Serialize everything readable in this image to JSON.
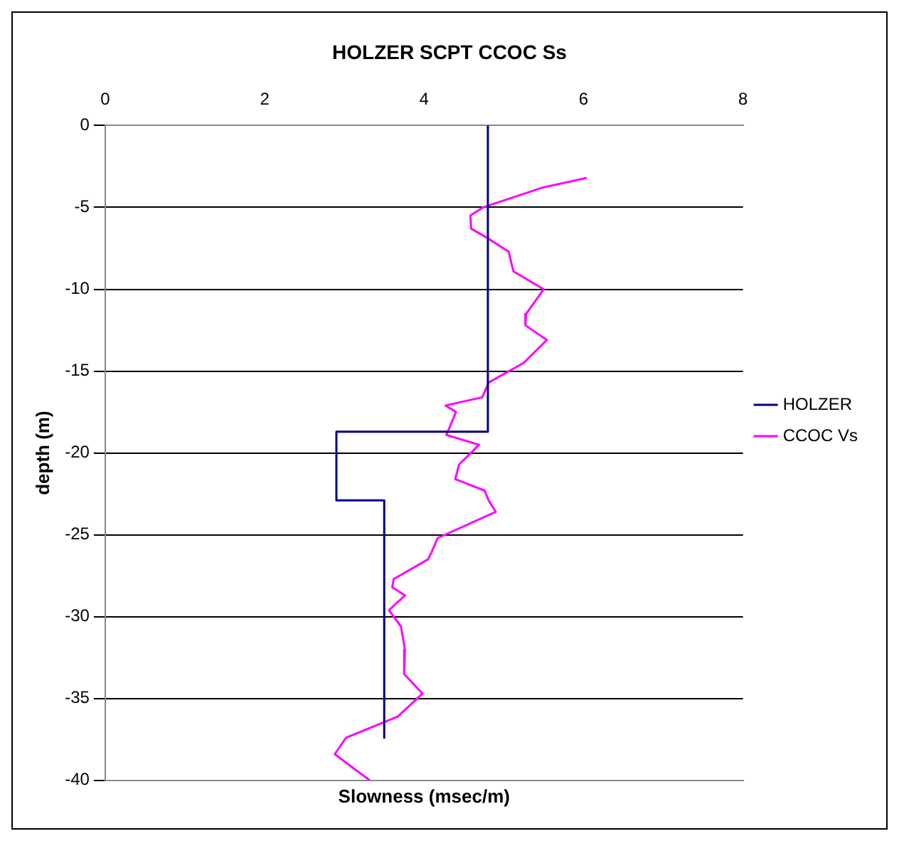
{
  "chart_data": {
    "type": "line",
    "title": "HOLZER SCPT CCOC Ss",
    "xlabel": "Slowness (msec/m)",
    "ylabel": "depth (m)",
    "xlim": [
      0,
      8
    ],
    "xticks": [
      0,
      2,
      4,
      6,
      8
    ],
    "ylim": [
      -40,
      0
    ],
    "yticks": [
      -40,
      -35,
      -30,
      -25,
      -20,
      -15,
      -10,
      -5,
      0
    ],
    "grid": "y",
    "legend": "right",
    "marker": "none",
    "line_style": "solid",
    "series": [
      {
        "name": "HOLZER",
        "color": "#000080",
        "x": [
          4.8,
          4.8,
          2.9,
          2.9,
          3.5,
          3.5
        ],
        "values": [
          0,
          -18.7,
          -18.7,
          -22.9,
          -22.9,
          -37.4
        ]
      },
      {
        "name": "CCOC Vs",
        "color": "#ff00ff",
        "x": [
          6.04,
          5.48,
          4.74,
          4.58,
          4.59,
          4.77,
          5.06,
          5.12,
          5.5,
          5.28,
          5.27,
          5.54,
          5.25,
          4.81,
          4.73,
          4.27,
          4.4,
          4.28,
          4.69,
          4.44,
          4.39,
          4.76,
          4.81,
          4.9,
          4.17,
          4.1,
          4.05,
          3.62,
          3.6,
          3.76,
          3.56,
          3.71,
          3.76,
          3.75,
          3.98,
          3.67,
          3.02,
          2.88,
          3.32
        ],
        "values": [
          -3.2,
          -3.8,
          -5,
          -5.5,
          -6.3,
          -6.8,
          -7.7,
          -8.9,
          -10,
          -11.5,
          -12.2,
          -13.1,
          -14.5,
          -15.7,
          -16.6,
          -17.1,
          -17.5,
          -18.9,
          -19.5,
          -20.7,
          -21.6,
          -22.3,
          -22.9,
          -23.6,
          -25.2,
          -26,
          -26.5,
          -27.7,
          -28.2,
          -28.7,
          -29.6,
          -30.6,
          -32,
          -33.5,
          -34.7,
          -36.1,
          -37.4,
          -38.4,
          -40
        ]
      }
    ]
  }
}
